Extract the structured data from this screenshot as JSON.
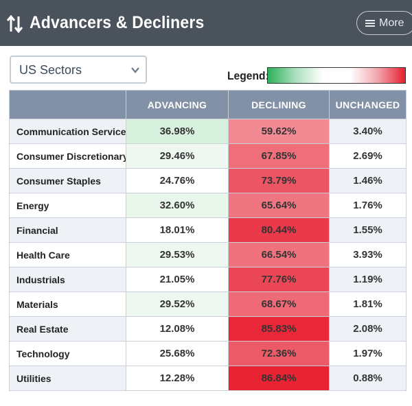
{
  "header": {
    "title": "Advancers & Decliners",
    "title_icon": "sort-arrows-icon",
    "more_label": "More",
    "more_icon": "hamburger-menu-icon"
  },
  "filter": {
    "selected": "US Sectors",
    "icon": "chevron-down-icon"
  },
  "legend": {
    "label": "Legend:",
    "scale_colors": [
      "#2eb05a",
      "#ffffff",
      "#e8202f"
    ]
  },
  "table": {
    "columns": [
      "",
      "ADVANCING",
      "DECLINING",
      "UNCHANGED"
    ],
    "rows": [
      {
        "sector": "Communication Services",
        "advancing": "36.98%",
        "declining": "59.62%",
        "unchanged": "3.40%",
        "adv_bg": "#d8f1df",
        "dec_bg": "#f28a94"
      },
      {
        "sector": "Consumer Discretionary",
        "advancing": "29.46%",
        "declining": "67.85%",
        "unchanged": "2.69%",
        "adv_bg": "#eef8f1",
        "dec_bg": "#ee6e7a"
      },
      {
        "sector": "Consumer Staples",
        "advancing": "24.76%",
        "declining": "73.79%",
        "unchanged": "1.46%",
        "adv_bg": "#ffffff",
        "dec_bg": "#ec5563"
      },
      {
        "sector": "Energy",
        "advancing": "32.60%",
        "declining": "65.64%",
        "unchanged": "1.76%",
        "adv_bg": "#e8f6ec",
        "dec_bg": "#ef7580"
      },
      {
        "sector": "Financial",
        "advancing": "18.01%",
        "declining": "80.44%",
        "unchanged": "1.55%",
        "adv_bg": "#ffffff",
        "dec_bg": "#e9394a"
      },
      {
        "sector": "Health Care",
        "advancing": "29.53%",
        "declining": "66.54%",
        "unchanged": "3.93%",
        "adv_bg": "#eef8f1",
        "dec_bg": "#ef727d"
      },
      {
        "sector": "Industrials",
        "advancing": "21.05%",
        "declining": "77.76%",
        "unchanged": "1.19%",
        "adv_bg": "#ffffff",
        "dec_bg": "#ea4656"
      },
      {
        "sector": "Materials",
        "advancing": "29.52%",
        "declining": "68.67%",
        "unchanged": "1.81%",
        "adv_bg": "#eef8f1",
        "dec_bg": "#ee6a76"
      },
      {
        "sector": "Real Estate",
        "advancing": "12.08%",
        "declining": "85.83%",
        "unchanged": "2.08%",
        "adv_bg": "#ffffff",
        "dec_bg": "#e82838"
      },
      {
        "sector": "Technology",
        "advancing": "25.68%",
        "declining": "72.36%",
        "unchanged": "1.97%",
        "adv_bg": "#ffffff",
        "dec_bg": "#ec5a67"
      },
      {
        "sector": "Utilities",
        "advancing": "12.28%",
        "declining": "86.84%",
        "unchanged": "0.88%",
        "adv_bg": "#ffffff",
        "dec_bg": "#e82333"
      }
    ]
  }
}
